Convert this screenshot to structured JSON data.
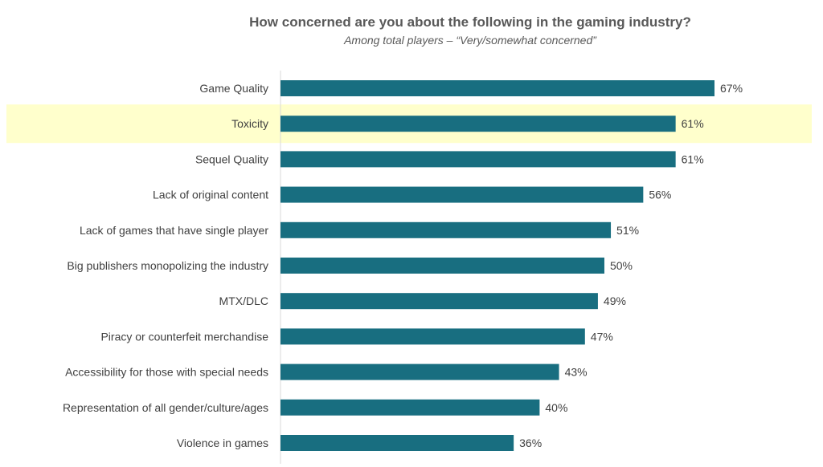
{
  "chart_data": {
    "type": "bar",
    "orientation": "horizontal",
    "title": "How concerned are you about the following in the gaming industry?",
    "subtitle": "Among total players – “Very/somewhat concerned”",
    "xlabel": "",
    "ylabel": "",
    "xlim": [
      0,
      67
    ],
    "grid": false,
    "categories": [
      "Game Quality",
      "Toxicity",
      "Sequel Quality",
      "Lack of original content",
      "Lack of games that have single player",
      "Big publishers monopolizing the industry",
      "MTX/DLC",
      "Piracy or counterfeit merchandise",
      "Accessibility for those with special needs",
      "Representation of all gender/culture/ages",
      "Violence in games"
    ],
    "values": [
      67,
      61,
      61,
      56,
      51,
      50,
      49,
      47,
      43,
      40,
      36
    ],
    "value_labels": [
      "67%",
      "61%",
      "61%",
      "56%",
      "51%",
      "50%",
      "49%",
      "47%",
      "43%",
      "40%",
      "36%"
    ],
    "highlighted_category": "Toxicity",
    "colors": {
      "bar": "#186e80",
      "highlight": "#ffffcc",
      "text": "#404040",
      "title": "#595959",
      "axis": "#d9d9d9"
    }
  }
}
